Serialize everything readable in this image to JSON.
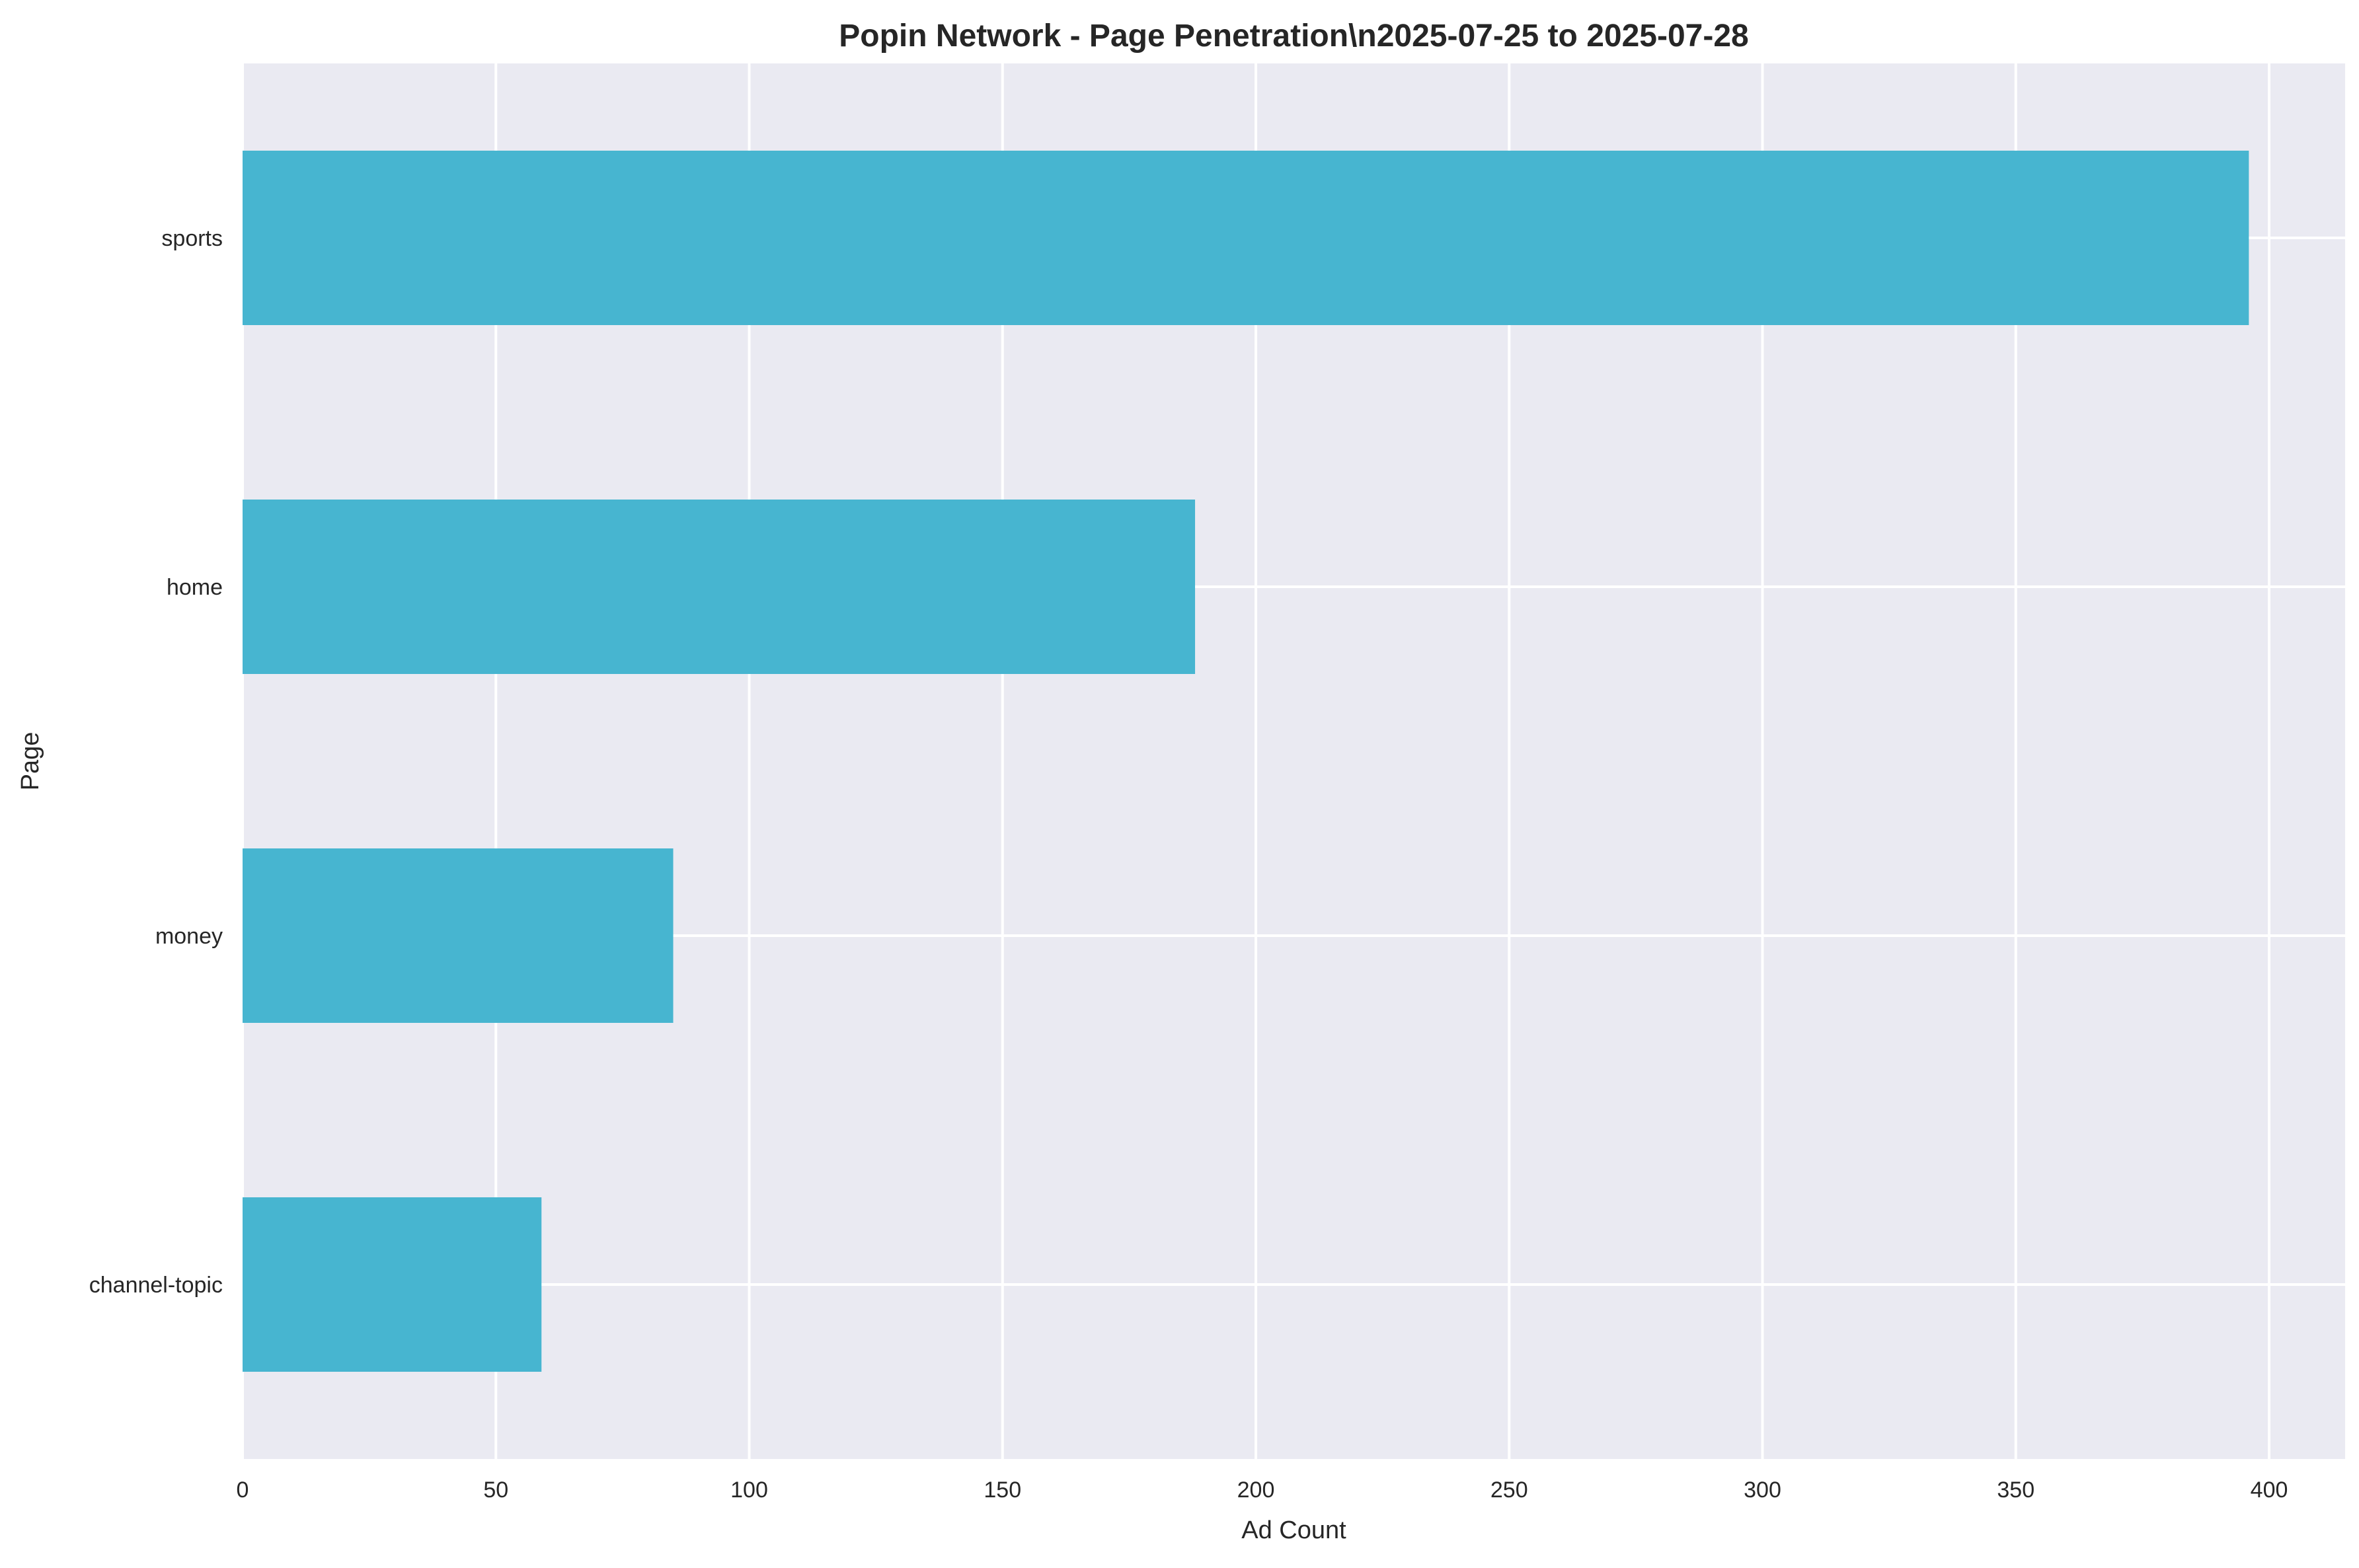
{
  "chart_data": {
    "type": "bar",
    "orientation": "horizontal",
    "title": "Popin Network - Page Penetration\\n2025-07-25 to 2025-07-28",
    "xlabel": "Ad Count",
    "ylabel": "Page",
    "categories": [
      "sports",
      "home",
      "money",
      "channel-topic"
    ],
    "values": [
      396,
      188,
      85,
      59
    ],
    "xlim": [
      0,
      415
    ],
    "xticks": [
      0,
      50,
      100,
      150,
      200,
      250,
      300,
      350,
      400
    ],
    "grid": true,
    "bar_color": "#47b5d0",
    "background_color": "#eaeaf2",
    "grid_color": "#ffffff"
  }
}
